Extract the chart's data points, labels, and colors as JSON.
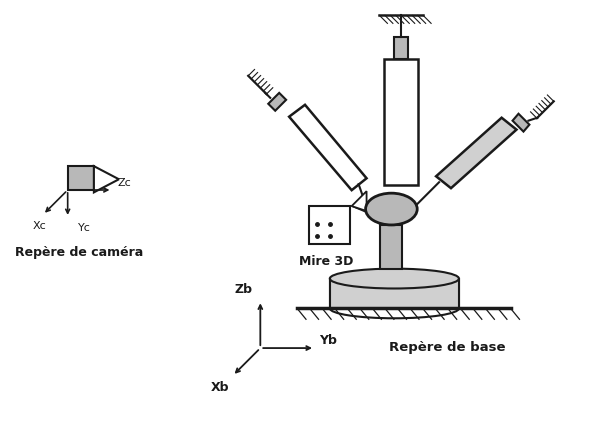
{
  "bg": "#ffffff",
  "lc": "#1a1a1a",
  "gray": "#b8b8b8",
  "lgray": "#d0d0d0",
  "camera_label": "Repère de caméra",
  "base_label": "Repère de base",
  "mire_label": "Mire 3D",
  "xc": "Xc",
  "yc": "Yc",
  "zc": "Zc",
  "xb": "Xb",
  "yb": "Yb",
  "zb": "Zb"
}
